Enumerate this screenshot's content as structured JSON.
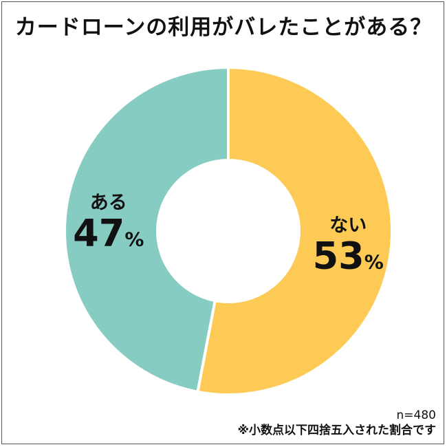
{
  "chart_data": {
    "type": "pie",
    "title": "カードローンの利用がバレたことがある？",
    "slices": [
      {
        "label": "ない",
        "value": 53,
        "value_text": "53",
        "unit": "%",
        "color": "#FDCB55"
      },
      {
        "label": "ある",
        "value": 47,
        "value_text": "47",
        "unit": "%",
        "color": "#86CCC2"
      }
    ],
    "donut": true,
    "sample_size": "n=480",
    "note": "※小数点以下四捨五入された割合です"
  }
}
